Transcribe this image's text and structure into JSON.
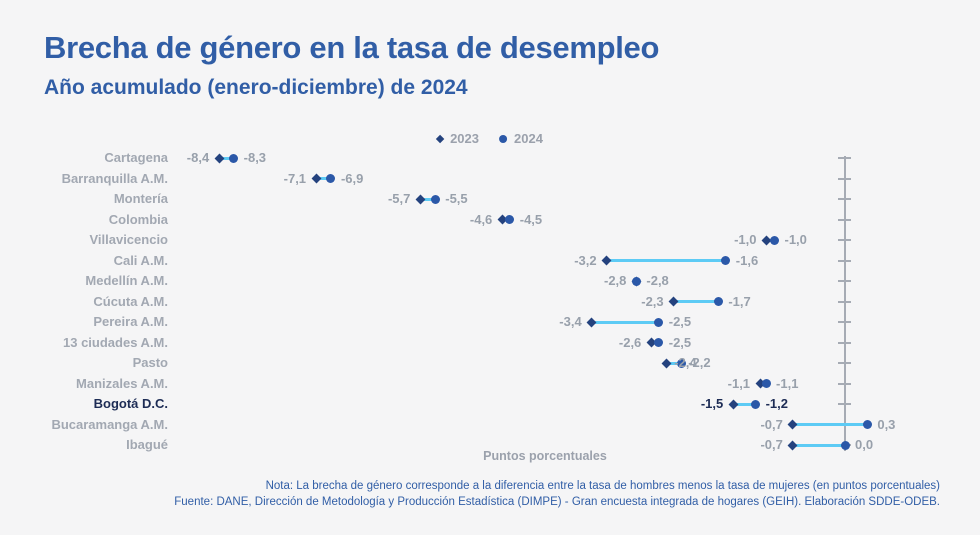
{
  "title": "Brecha de género en la tasa de desempleo",
  "subtitle": "Año acumulado (enero-diciembre) de 2024",
  "footer": {
    "note": "Nota: La brecha de género corresponde a la diferencia entre la tasa de hombres menos la tasa de mujeres (en puntos porcentuales)",
    "source": "Fuente: DANE, Dirección de Metodología y Producción Estadística (DIMPE) - Gran encuesta integrada de hogares (GEIH). Elaboración SDDE-ODEB."
  },
  "colors": {
    "title_blue": "#315ea6",
    "marker_2023": "#24427e",
    "marker_2024": "#2b58a8",
    "connector": "#5dcbf5",
    "gray_text": "#9ba1ac",
    "highlight_navy": "#1d2c55",
    "axis_gray": "#a6abb4",
    "background": "#f5f5f6"
  },
  "chart_data": {
    "type": "scatter",
    "subtype": "dumbbell",
    "title": "Brecha de género en la tasa de desempleo",
    "xlabel": "Puntos porcentuales",
    "ylabel": "",
    "xlim": [
      -9.5,
      0.6
    ],
    "zero_axis": true,
    "legend_position": "top-center",
    "highlight_category": "Bogotá D.C.",
    "categories": [
      "Cartagena",
      "Barranquilla A.M.",
      "Montería",
      "Colombia",
      "Villavicencio",
      "Cali A.M.",
      "Medellín A.M.",
      "Cúcuta A.M.",
      "Pereira A.M.",
      "13 ciudades A.M.",
      "Pasto",
      "Manizales A.M.",
      "Bogotá D.C.",
      "Bucaramanga A.M.",
      "Ibagué"
    ],
    "series": [
      {
        "name": "2023",
        "marker": "diamond",
        "color": "#24427e",
        "values": [
          -8.4,
          -7.1,
          -5.7,
          -4.6,
          -1.0,
          -3.2,
          -2.8,
          -2.3,
          -3.4,
          -2.6,
          -2.4,
          -1.1,
          -1.5,
          -0.7,
          -0.7
        ],
        "labels": [
          "-8,4",
          "-7,1",
          "-5,7",
          "-4,6",
          "-1,0",
          "-3,2",
          "-2,8",
          "-2,3",
          "-3,4",
          "-2,6",
          "-2,4",
          "-1,1",
          "-1,5",
          "-0,7",
          "-0,7"
        ]
      },
      {
        "name": "2024",
        "marker": "circle",
        "color": "#2b58a8",
        "values": [
          -8.3,
          -6.9,
          -5.5,
          -4.5,
          -1.0,
          -1.6,
          -2.8,
          -1.7,
          -2.5,
          -2.5,
          -2.2,
          -1.1,
          -1.2,
          0.3,
          0.0
        ],
        "labels": [
          "-8,3",
          "-6,9",
          "-5,5",
          "-4,5",
          "-1,0",
          "-1,6",
          "-2,8",
          "-1,7",
          "-2,5",
          "-2,5",
          "-2,2",
          "-1,1",
          "-1,2",
          "0,3",
          "0,0"
        ]
      }
    ]
  }
}
